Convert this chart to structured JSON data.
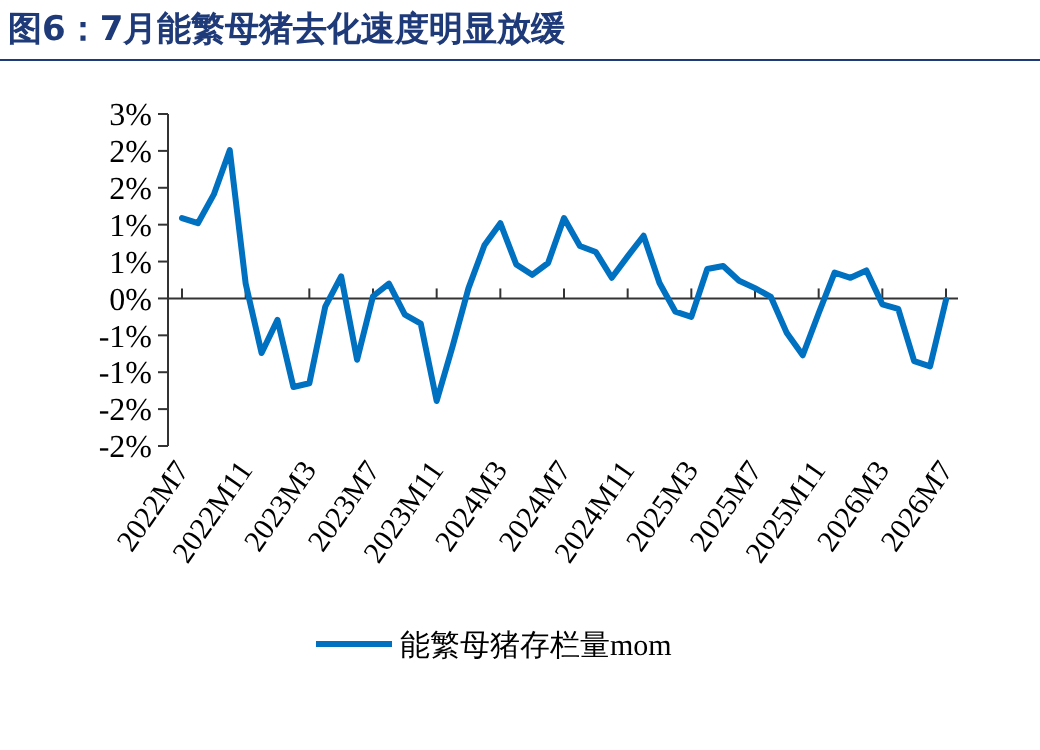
{
  "chart_data": {
    "type": "line",
    "title": "图6：7月能繁母猪去化速度明显放缓",
    "categories": [
      "2022M7",
      null,
      null,
      null,
      "2022M11",
      null,
      null,
      null,
      "2023M3",
      null,
      null,
      null,
      "2023M7",
      null,
      null,
      null,
      "2023M11",
      null,
      null,
      null,
      "2024M3",
      null,
      null,
      null,
      "2024M7",
      null,
      null,
      null,
      "2024M11",
      null,
      null,
      null,
      "2025M3",
      null,
      null,
      null,
      "2025M7",
      null,
      null,
      null,
      "2025M11",
      null,
      null,
      null,
      "2026M3",
      null,
      null,
      null,
      "2026M7"
    ],
    "series": [
      {
        "name": "能繁母猪存栏量mom",
        "color": "#0070c0",
        "values": [
          1.09,
          1.02,
          1.41,
          2.01,
          0.2,
          -0.74,
          -0.29,
          -1.2,
          -1.15,
          -0.11,
          0.3,
          -0.83,
          0.03,
          0.2,
          -0.22,
          -0.34,
          -1.39,
          -0.65,
          0.14,
          0.72,
          1.02,
          0.46,
          0.32,
          0.48,
          1.09,
          0.71,
          0.63,
          0.28,
          0.57,
          0.85,
          0.21,
          -0.18,
          -0.25,
          0.4,
          0.44,
          0.24,
          0.14,
          0.02,
          -0.47,
          -0.77,
          -0.2,
          0.35,
          0.28,
          0.38,
          -0.08,
          -0.14,
          -0.85,
          -0.92,
          -0.02
        ]
      }
    ],
    "ylim": [
      -2,
      2.5
    ],
    "yticks": [
      {
        "value": -2,
        "label": "-2%"
      },
      {
        "value": -1.5,
        "label": "-2%"
      },
      {
        "value": -1,
        "label": "-1%"
      },
      {
        "value": -0.5,
        "label": "-1%"
      },
      {
        "value": 0,
        "label": "0%"
      },
      {
        "value": 0.5,
        "label": "1%"
      },
      {
        "value": 1,
        "label": "1%"
      },
      {
        "value": 1.5,
        "label": "2%"
      },
      {
        "value": 2,
        "label": "2%"
      },
      {
        "value": 2.5,
        "label": "3%"
      }
    ],
    "legend": "bottom",
    "marker": "none",
    "line_style": "solid"
  }
}
